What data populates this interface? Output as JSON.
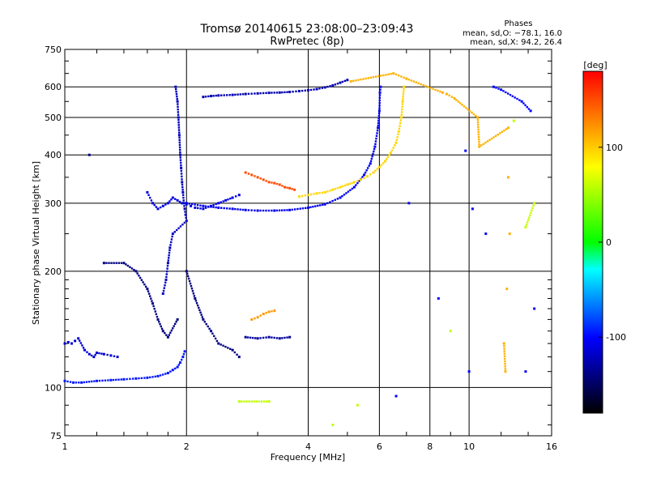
{
  "chart_data": {
    "type": "scatter",
    "title": "Tromsø 20140615 23:08:00–23:09:43",
    "subtitle": "RwPretec (8p)",
    "xlabel": "Frequency [MHz]",
    "ylabel": "Stationary phase Virtual Height [km]",
    "x_scale": "log",
    "y_scale": "log",
    "xlim": [
      1,
      16
    ],
    "ylim": [
      75,
      750
    ],
    "x_ticks": [
      1,
      2,
      4,
      6,
      8,
      10,
      16
    ],
    "x_tick_labels": [
      "1",
      "2",
      "4",
      "6",
      "8",
      "10",
      "16"
    ],
    "x_grid_lines": [
      2,
      4,
      6,
      8,
      10
    ],
    "y_ticks": [
      75,
      100,
      200,
      300,
      400,
      500,
      600,
      750
    ],
    "y_tick_labels": [
      "75",
      "100",
      "200",
      "300",
      "400",
      "500",
      "600",
      "750"
    ],
    "y_grid_lines": [
      100,
      200,
      300,
      400,
      500,
      600
    ],
    "grid": true,
    "stats": {
      "title": "Phases",
      "line_o": "mean, sd,O: −78.1, 16.0",
      "line_x": "mean, sd,X:  94.2, 26.4"
    },
    "colorbar": {
      "label": "[deg]",
      "min": -180,
      "max": 180,
      "ticks": [
        100,
        0,
        -100
      ],
      "tick_labels": [
        "100",
        "0",
        "-100"
      ],
      "position": "right",
      "colors": [
        "#ff0000",
        "#ffa500",
        "#ffff00",
        "#00ff00",
        "#00ffff",
        "#0000ff",
        "#000000"
      ]
    },
    "series": [
      {
        "phase": -115,
        "points": [
          [
            1.0,
            130
          ],
          [
            1.02,
            131
          ],
          [
            1.04,
            130
          ],
          [
            1.06,
            132
          ],
          [
            1.08,
            134
          ],
          [
            1.12,
            125
          ],
          [
            1.15,
            122
          ],
          [
            1.18,
            120
          ],
          [
            1.2,
            123
          ],
          [
            1.25,
            122
          ],
          [
            1.3,
            121
          ],
          [
            1.35,
            120
          ]
        ]
      },
      {
        "phase": -95,
        "points": [
          [
            1.0,
            104
          ],
          [
            1.05,
            103
          ],
          [
            1.1,
            103
          ],
          [
            1.2,
            104
          ],
          [
            1.3,
            104.5
          ],
          [
            1.4,
            105
          ],
          [
            1.5,
            105.5
          ],
          [
            1.6,
            106
          ],
          [
            1.7,
            107
          ],
          [
            1.8,
            109
          ],
          [
            1.85,
            111
          ],
          [
            1.9,
            113
          ],
          [
            1.93,
            116
          ],
          [
            1.96,
            120
          ],
          [
            1.98,
            124
          ]
        ]
      },
      {
        "phase": -120,
        "points": [
          [
            1.88,
            600
          ],
          [
            1.9,
            550
          ],
          [
            1.91,
            500
          ],
          [
            1.92,
            450
          ],
          [
            1.93,
            400
          ],
          [
            1.94,
            370
          ],
          [
            1.95,
            340
          ],
          [
            1.96,
            320
          ],
          [
            1.97,
            300
          ],
          [
            1.98,
            290
          ],
          [
            1.99,
            280
          ],
          [
            2.0,
            270
          ],
          [
            1.85,
            250
          ],
          [
            1.82,
            230
          ],
          [
            1.8,
            210
          ],
          [
            1.78,
            190
          ],
          [
            1.75,
            175
          ]
        ]
      },
      {
        "phase": -110,
        "points": [
          [
            1.6,
            320
          ],
          [
            1.65,
            300
          ],
          [
            1.7,
            290
          ],
          [
            1.75,
            295
          ],
          [
            1.8,
            300
          ],
          [
            1.85,
            310
          ],
          [
            1.9,
            305
          ],
          [
            1.95,
            300
          ],
          [
            2.0,
            298
          ],
          [
            2.05,
            295
          ],
          [
            2.1,
            292
          ],
          [
            2.2,
            290
          ],
          [
            2.3,
            295
          ],
          [
            2.4,
            300
          ],
          [
            2.5,
            305
          ],
          [
            2.6,
            310
          ],
          [
            2.7,
            315
          ]
        ]
      },
      {
        "phase": -105,
        "points": [
          [
            2.0,
            300
          ],
          [
            2.2,
            295
          ],
          [
            2.4,
            292
          ],
          [
            2.6,
            290
          ],
          [
            2.8,
            288
          ],
          [
            3.0,
            287
          ],
          [
            3.3,
            287
          ],
          [
            3.6,
            288
          ],
          [
            4.0,
            292
          ],
          [
            4.4,
            298
          ],
          [
            4.8,
            310
          ],
          [
            5.2,
            330
          ],
          [
            5.5,
            355
          ],
          [
            5.7,
            380
          ],
          [
            5.85,
            420
          ],
          [
            5.95,
            470
          ],
          [
            6.0,
            520
          ],
          [
            6.02,
            580
          ],
          [
            6.04,
            600
          ]
        ]
      },
      {
        "phase": -125,
        "points": [
          [
            2.2,
            565
          ],
          [
            2.3,
            568
          ],
          [
            2.4,
            570
          ],
          [
            2.6,
            572
          ],
          [
            2.8,
            575
          ],
          [
            3.0,
            577
          ],
          [
            3.2,
            579
          ],
          [
            3.4,
            580
          ],
          [
            3.6,
            582
          ],
          [
            3.8,
            585
          ],
          [
            4.0,
            588
          ],
          [
            4.2,
            592
          ],
          [
            4.4,
            598
          ],
          [
            4.6,
            605
          ],
          [
            4.8,
            615
          ],
          [
            5.0,
            625
          ]
        ]
      },
      {
        "phase": -130,
        "points": [
          [
            2.8,
            135
          ],
          [
            3.0,
            134
          ],
          [
            3.2,
            135
          ],
          [
            3.4,
            134
          ],
          [
            3.6,
            135
          ]
        ]
      },
      {
        "phase": 120,
        "points": [
          [
            2.9,
            150
          ],
          [
            3.0,
            152
          ],
          [
            3.1,
            155
          ],
          [
            3.2,
            157
          ],
          [
            3.3,
            158
          ]
        ]
      },
      {
        "phase": 150,
        "points": [
          [
            2.8,
            360
          ],
          [
            2.9,
            355
          ],
          [
            3.0,
            350
          ],
          [
            3.1,
            345
          ],
          [
            3.2,
            340
          ],
          [
            3.3,
            338
          ],
          [
            3.4,
            335
          ],
          [
            3.5,
            330
          ],
          [
            3.6,
            328
          ],
          [
            3.7,
            325
          ]
        ]
      },
      {
        "phase": 95,
        "points": [
          [
            3.8,
            312
          ],
          [
            4.0,
            315
          ],
          [
            4.2,
            318
          ],
          [
            4.4,
            320
          ],
          [
            4.6,
            325
          ],
          [
            4.8,
            330
          ],
          [
            5.0,
            335
          ],
          [
            5.2,
            340
          ],
          [
            5.4,
            345
          ],
          [
            5.6,
            352
          ],
          [
            5.8,
            360
          ],
          [
            6.0,
            372
          ],
          [
            6.2,
            385
          ],
          [
            6.4,
            405
          ],
          [
            6.6,
            430
          ],
          [
            6.7,
            460
          ],
          [
            6.8,
            500
          ],
          [
            6.85,
            550
          ],
          [
            6.9,
            600
          ]
        ]
      },
      {
        "phase": -140,
        "points": [
          [
            1.15,
            400
          ],
          [
            1.25,
            210
          ],
          [
            1.4,
            210
          ],
          [
            1.5,
            200
          ],
          [
            1.6,
            180
          ],
          [
            1.65,
            165
          ],
          [
            1.7,
            150
          ],
          [
            1.75,
            140
          ],
          [
            1.8,
            135
          ],
          [
            1.9,
            150
          ],
          [
            2.0,
            200
          ],
          [
            2.1,
            170
          ],
          [
            2.2,
            150
          ],
          [
            2.3,
            140
          ],
          [
            2.4,
            130
          ],
          [
            2.6,
            125
          ],
          [
            2.7,
            120
          ]
        ]
      },
      {
        "phase": 110,
        "points": [
          [
            5.1,
            620
          ],
          [
            6.5,
            650
          ],
          [
            7.0,
            630
          ],
          [
            8.6,
            580
          ],
          [
            8.8,
            575
          ],
          [
            9.2,
            560
          ],
          [
            10.5,
            500
          ],
          [
            10.6,
            420
          ],
          [
            12.5,
            470
          ],
          [
            12.5,
            350
          ],
          [
            12.6,
            250
          ],
          [
            12.4,
            180
          ],
          [
            12.2,
            130
          ],
          [
            12.3,
            110
          ]
        ]
      },
      {
        "phase": -100,
        "points": [
          [
            9.8,
            410
          ],
          [
            10.2,
            290
          ],
          [
            10.0,
            110
          ],
          [
            11.5,
            600
          ],
          [
            12.0,
            590
          ],
          [
            13.5,
            550
          ],
          [
            14.2,
            520
          ],
          [
            14.5,
            160
          ],
          [
            13.8,
            110
          ],
          [
            11.0,
            250
          ],
          [
            8.4,
            170
          ],
          [
            7.1,
            300
          ],
          [
            6.6,
            95
          ]
        ]
      },
      {
        "phase": 60,
        "points": [
          [
            4.6,
            80
          ],
          [
            3.2,
            92
          ],
          [
            2.7,
            92
          ],
          [
            5.3,
            90
          ],
          [
            9.0,
            140
          ],
          [
            14.5,
            300
          ],
          [
            13.8,
            260
          ],
          [
            12.9,
            490
          ]
        ]
      }
    ]
  }
}
